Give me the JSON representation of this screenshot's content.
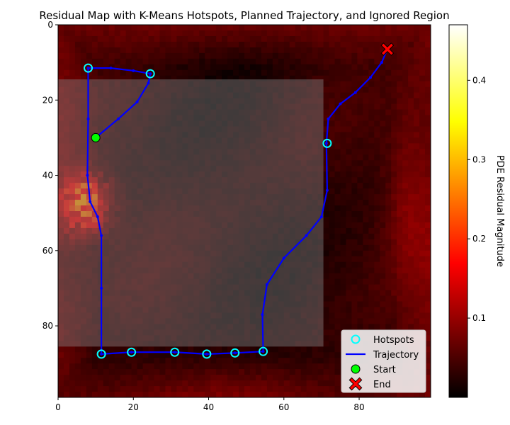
{
  "chart_data": {
    "type": "heatmap",
    "title": "Residual Map with K-Means Hotspots, Planned Trajectory, and Ignored Region",
    "xlabel": "",
    "ylabel": "",
    "xlim": [
      0,
      99
    ],
    "ylim": [
      99,
      0
    ],
    "x_ticks": [
      "0",
      "20",
      "40",
      "60",
      "80"
    ],
    "y_ticks": [
      "0",
      "20",
      "40",
      "60",
      "80"
    ],
    "colormap": "hot",
    "colorbar": {
      "label": "PDE Residual Magnitude",
      "range": [
        0.0,
        0.47
      ],
      "ticks": [
        "0.1",
        "0.2",
        "0.3",
        "0.4"
      ]
    },
    "ignored_region": {
      "x": [
        0,
        70.5
      ],
      "y": [
        14.5,
        85.5
      ],
      "color": "#808080"
    },
    "hotspots": [
      {
        "x": 8,
        "y": 11.5
      },
      {
        "x": 24.5,
        "y": 13
      },
      {
        "x": 71.5,
        "y": 31.5
      },
      {
        "x": 11.5,
        "y": 87.5
      },
      {
        "x": 19.5,
        "y": 87
      },
      {
        "x": 31,
        "y": 87
      },
      {
        "x": 39.5,
        "y": 87.5
      },
      {
        "x": 47,
        "y": 87.2
      },
      {
        "x": 54.5,
        "y": 86.8
      }
    ],
    "trajectory": [
      {
        "x": 10,
        "y": 30
      },
      {
        "x": 16,
        "y": 25
      },
      {
        "x": 21,
        "y": 20.5
      },
      {
        "x": 24,
        "y": 15.5
      },
      {
        "x": 24.5,
        "y": 13
      },
      {
        "x": 20,
        "y": 12.2
      },
      {
        "x": 14,
        "y": 11.5
      },
      {
        "x": 8,
        "y": 11.5
      },
      {
        "x": 8,
        "y": 25
      },
      {
        "x": 7.8,
        "y": 40
      },
      {
        "x": 8.5,
        "y": 47
      },
      {
        "x": 10.5,
        "y": 51
      },
      {
        "x": 11.5,
        "y": 56
      },
      {
        "x": 11.5,
        "y": 70
      },
      {
        "x": 11.5,
        "y": 87.5
      },
      {
        "x": 19.5,
        "y": 87
      },
      {
        "x": 31,
        "y": 87
      },
      {
        "x": 39.5,
        "y": 87.5
      },
      {
        "x": 47,
        "y": 87.2
      },
      {
        "x": 54.5,
        "y": 86.8
      },
      {
        "x": 54.3,
        "y": 77
      },
      {
        "x": 55.5,
        "y": 69
      },
      {
        "x": 60,
        "y": 62
      },
      {
        "x": 66,
        "y": 56
      },
      {
        "x": 70,
        "y": 51
      },
      {
        "x": 71.5,
        "y": 44
      },
      {
        "x": 71.3,
        "y": 31.5
      },
      {
        "x": 71.8,
        "y": 25
      },
      {
        "x": 75,
        "y": 21
      },
      {
        "x": 79,
        "y": 18
      },
      {
        "x": 83,
        "y": 14
      },
      {
        "x": 86,
        "y": 10
      },
      {
        "x": 87.5,
        "y": 6.5
      }
    ],
    "start": {
      "x": 10,
      "y": 30,
      "color": "#00ff00"
    },
    "end": {
      "x": 87.5,
      "y": 6.5,
      "color": "#ff0000"
    },
    "series_colors": {
      "hotspots": "#00ffff",
      "trajectory": "#0000ff"
    },
    "legend": {
      "placement": "lower-right",
      "entries": [
        "Hotspots",
        "Trajectory",
        "Start",
        "End"
      ]
    }
  }
}
